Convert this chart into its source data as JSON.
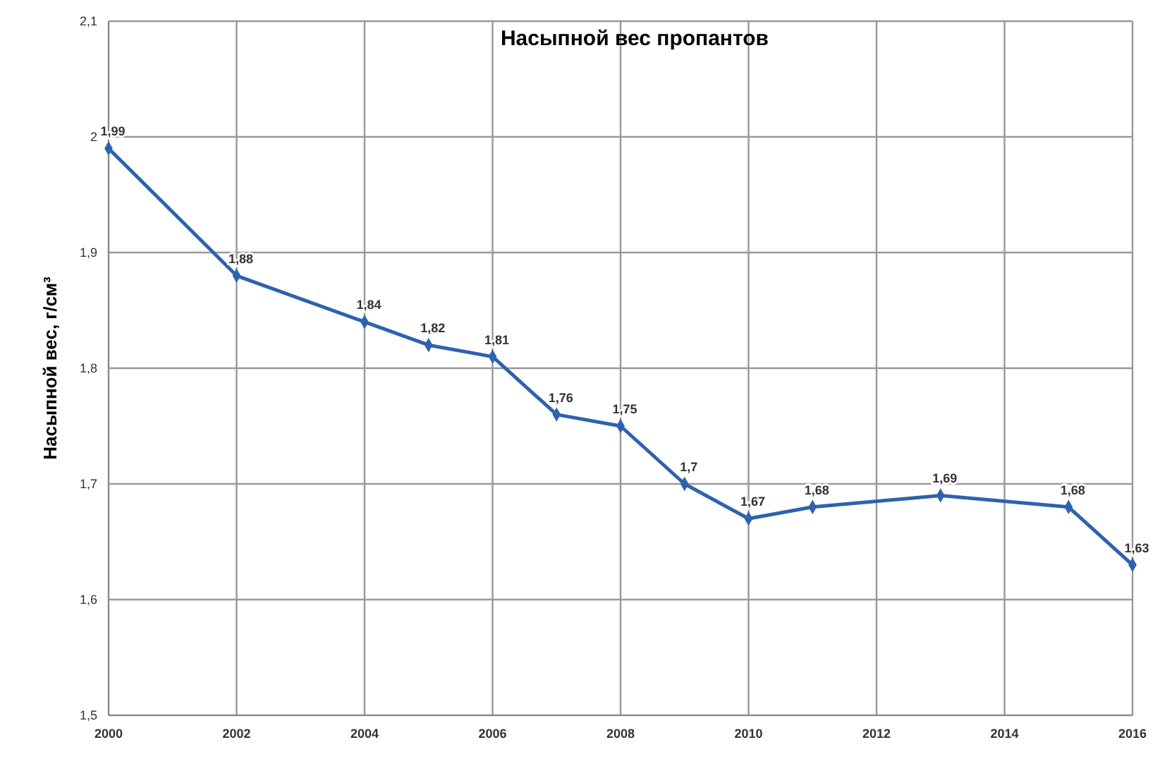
{
  "chart_data": {
    "type": "line",
    "title": "Насыпной вес пропантов",
    "ylabel": "Насыпной вес, г/см³",
    "x": [
      2000,
      2002,
      2004,
      2005,
      2006,
      2007,
      2008,
      2009,
      2010,
      2011,
      2013,
      2015,
      2016
    ],
    "series": [
      {
        "color": "#2e62ad",
        "values": [
          1.99,
          1.88,
          1.84,
          1.82,
          1.81,
          1.76,
          1.75,
          1.7,
          1.67,
          1.68,
          1.69,
          1.68,
          1.63
        ],
        "value_labels": [
          "1,99",
          "1,88",
          "1,84",
          "1,82",
          "1,81",
          "1,76",
          "1,75",
          "1,7",
          "1,67",
          "1,68",
          "1,69",
          "1,68",
          "1,63"
        ]
      }
    ],
    "xlim": [
      2000,
      2016
    ],
    "xticks": [
      2000,
      2002,
      2004,
      2006,
      2008,
      2010,
      2012,
      2014,
      2016
    ],
    "ylim": [
      1.5,
      2.1
    ],
    "yticks": [
      {
        "value": 1.5,
        "label": "1,5"
      },
      {
        "value": 1.6,
        "label": "1,6"
      },
      {
        "value": 1.7,
        "label": "1,7"
      },
      {
        "value": 1.8,
        "label": "1,8"
      },
      {
        "value": 1.9,
        "label": "1,9"
      },
      2,
      {
        "value": 2.1,
        "label": "2,1"
      }
    ],
    "grid": true,
    "marker": "diamond",
    "line_style": "solid"
  }
}
